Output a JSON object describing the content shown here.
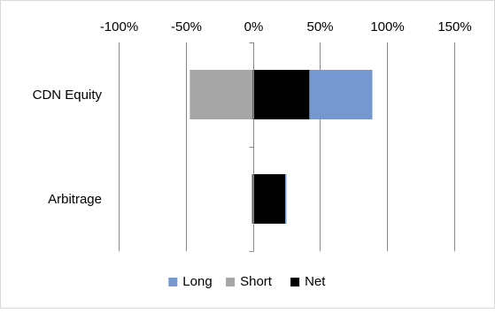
{
  "chart_data": {
    "type": "bar",
    "orientation": "horizontal",
    "stacking": "overlap",
    "categories": [
      "CDN Equity",
      "Arbitrage"
    ],
    "series": [
      {
        "name": "Long",
        "values": [
          89,
          25
        ],
        "color": "#7698d0"
      },
      {
        "name": "Short",
        "values": [
          -47,
          -1
        ],
        "color": "#a6a6a6"
      },
      {
        "name": "Net",
        "values": [
          42,
          24
        ],
        "color": "#000000"
      }
    ],
    "x_tick_labels": [
      "-100%",
      "-50%",
      "0%",
      "50%",
      "100%",
      "150%"
    ],
    "x_ticks": [
      -100,
      -50,
      0,
      50,
      100,
      150
    ],
    "xlim": [
      -100,
      150
    ],
    "x_axis_position": "top",
    "grid": true,
    "legend_position": "bottom",
    "title": "",
    "xlabel": "",
    "ylabel": ""
  }
}
